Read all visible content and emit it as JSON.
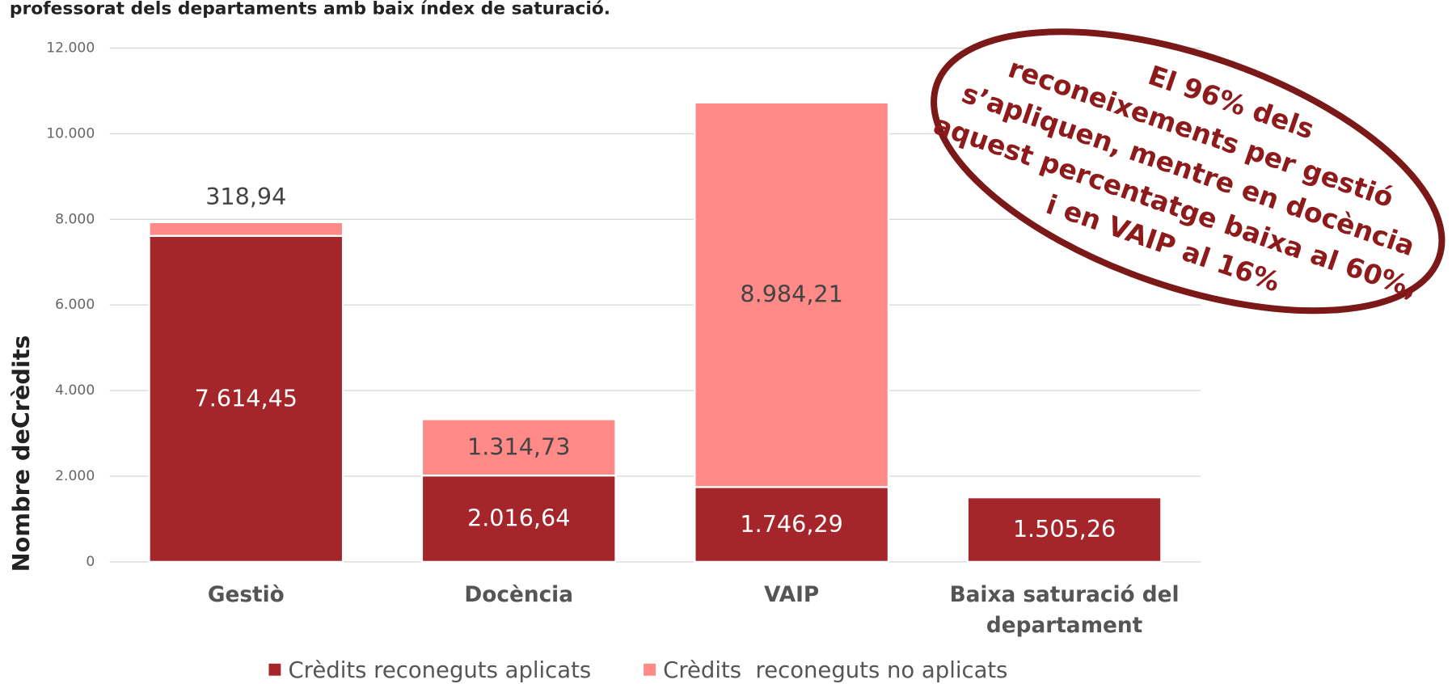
{
  "chart_data": {
    "type": "stacked_bar",
    "title": "professorat dels departaments amb baix índex de saturació.",
    "y_label": "Nombre deCrèdits",
    "categories": [
      "Gestiò",
      "Docència",
      "VAIP",
      "Baixa saturació del departament"
    ],
    "series": [
      {
        "name": "Crèdits reconeguts aplicats",
        "color": "#a4262a",
        "values": [
          7614.45,
          2016.64,
          1746.29,
          1505.26
        ],
        "value_labels": [
          "7.614,45",
          "2.016,64",
          "1.746,29",
          "1.505,26"
        ]
      },
      {
        "name": "Crèdits  reconeguts no aplicats",
        "color": "#ff8a87",
        "values": [
          318.94,
          1314.73,
          8984.21,
          null
        ],
        "value_labels": [
          "318,94",
          "1.314,73",
          "8.984,21",
          null
        ]
      }
    ],
    "ylim": [
      0,
      12000
    ],
    "yticks": [
      0,
      {
        "value": 2000,
        "label": "2.000"
      },
      {
        "value": 4000,
        "label": "4.000"
      },
      {
        "value": 6000,
        "label": "6.000"
      },
      {
        "value": 8000,
        "label": "8.000"
      },
      {
        "value": 10000,
        "label": "10.000"
      },
      {
        "value": 12000,
        "label": "12.000"
      }
    ],
    "grid": true,
    "legend": "bottom",
    "annotation": [
      "El 96% dels",
      "reconeixements per gestió",
      "s’apliquen, mentre en docència",
      "aquest percentatge baixa al 60%,",
      "i en VAIP al 16%"
    ]
  }
}
